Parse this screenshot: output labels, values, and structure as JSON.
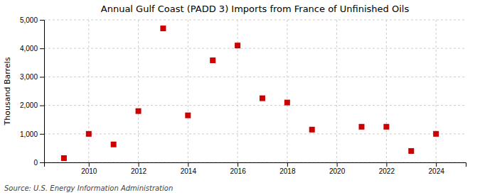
{
  "chart_data": {
    "type": "scatter",
    "title": "Annual Gulf Coast (PADD 3) Imports from France of Unfinished Oils",
    "ylabel": "Thousand Barrels",
    "source": "Source: U.S. Energy Information Administration",
    "x": [
      2009,
      2010,
      2011,
      2012,
      2013,
      2014,
      2015,
      2016,
      2017,
      2018,
      2019,
      2021,
      2022,
      2023,
      2024
    ],
    "values": [
      150,
      1000,
      630,
      1800,
      4700,
      1650,
      3580,
      4100,
      2250,
      2100,
      1150,
      1250,
      1250,
      400,
      1000
    ],
    "color": "#cc0000",
    "marker": "square",
    "xlim": [
      2008.2,
      2025.2
    ],
    "ylim": [
      0,
      5000
    ],
    "xticks": [
      2010,
      2012,
      2014,
      2016,
      2018,
      2020,
      2022,
      2024
    ],
    "yticks": [
      0,
      {
        "value": 1000,
        "label": "1,000"
      },
      {
        "value": 2000,
        "label": "2,000"
      },
      {
        "value": 3000,
        "label": "3,000"
      },
      {
        "value": 4000,
        "label": "4,000"
      },
      {
        "value": 5000,
        "label": "5,000"
      }
    ],
    "grid": true
  }
}
